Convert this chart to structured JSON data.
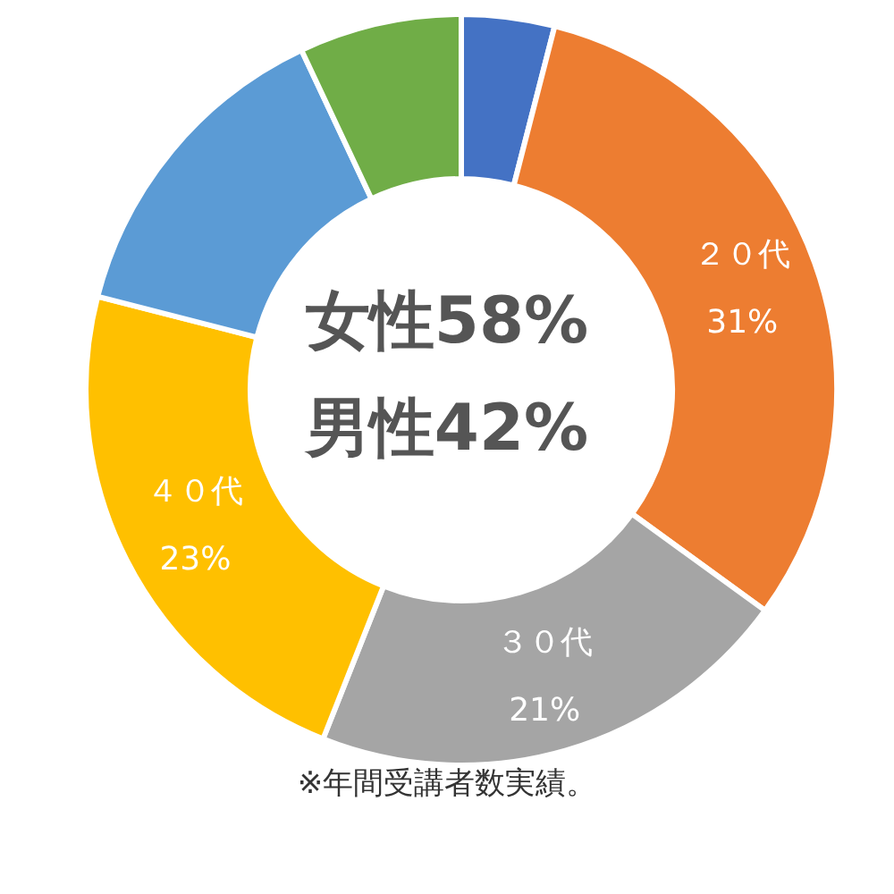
{
  "chart_data": {
    "type": "donut",
    "categories": [
      null,
      "２０代",
      "３０代",
      "４０代",
      null,
      null
    ],
    "values": [
      4,
      31,
      21,
      23,
      14,
      7
    ],
    "value_labels": [
      null,
      "31%",
      "21%",
      "23%",
      null,
      null
    ],
    "colors": [
      "#4472c4",
      "#ed7d31",
      "#a5a5a5",
      "#ffc000",
      "#5b9bd5",
      "#70ad47"
    ],
    "annotations": [
      "女性58%",
      "男性42%",
      "※年間受講者数実績。"
    ]
  }
}
